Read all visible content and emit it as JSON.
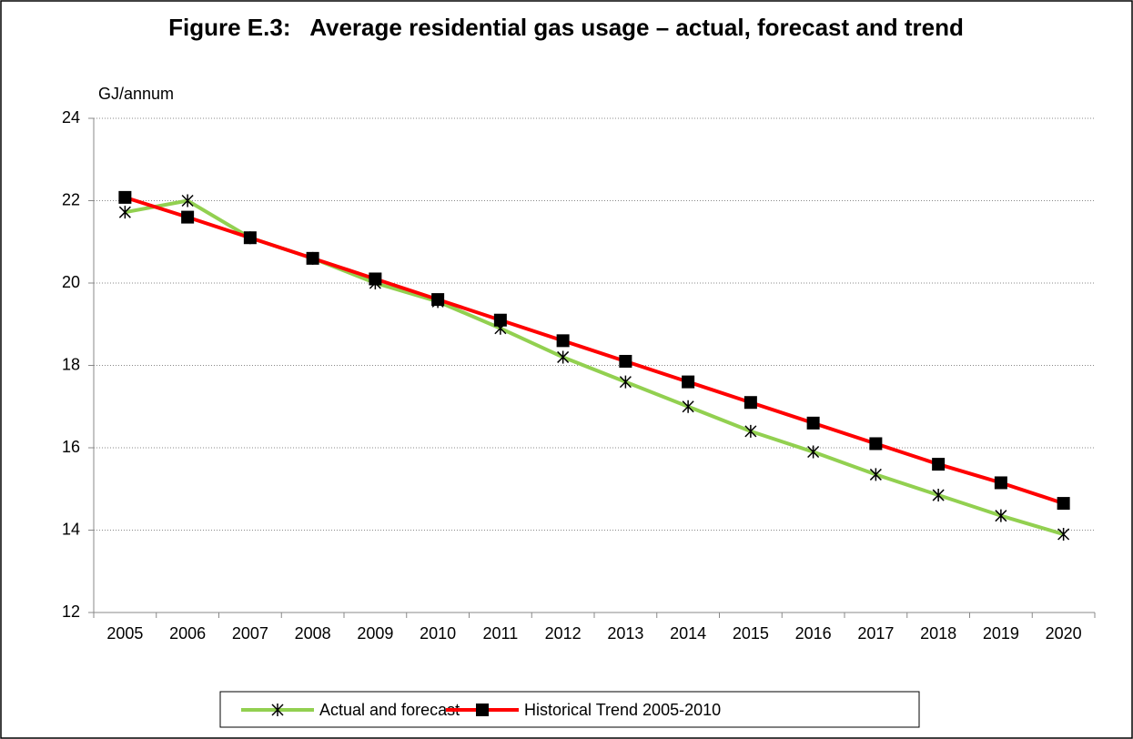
{
  "chart_data": {
    "type": "line",
    "title": "Figure E.3:   Average residential gas usage – actual, forecast and trend",
    "y_label": "GJ/annum",
    "categories": [
      "2005",
      "2006",
      "2007",
      "2008",
      "2009",
      "2010",
      "2011",
      "2012",
      "2013",
      "2014",
      "2015",
      "2016",
      "2017",
      "2018",
      "2019",
      "2020"
    ],
    "series": [
      {
        "name": "Actual and forecast",
        "color": "#92d050",
        "marker": "star",
        "values": [
          21.72,
          22.0,
          21.1,
          20.6,
          20.0,
          19.55,
          18.9,
          18.2,
          17.6,
          17.0,
          16.4,
          15.9,
          15.35,
          14.85,
          14.35,
          13.9
        ]
      },
      {
        "name": "Historical Trend 2005-2010",
        "color": "#ff0000",
        "marker": "square",
        "values": [
          22.08,
          21.6,
          21.1,
          20.6,
          20.1,
          19.6,
          19.1,
          18.6,
          18.1,
          17.6,
          17.1,
          16.6,
          16.1,
          15.6,
          15.15,
          14.65
        ]
      }
    ],
    "ylim": [
      12,
      24
    ],
    "yticks": [
      12,
      14,
      16,
      18,
      20,
      22,
      24
    ],
    "grid": true,
    "legend": "bottom",
    "title_color": "#1f3fff"
  }
}
